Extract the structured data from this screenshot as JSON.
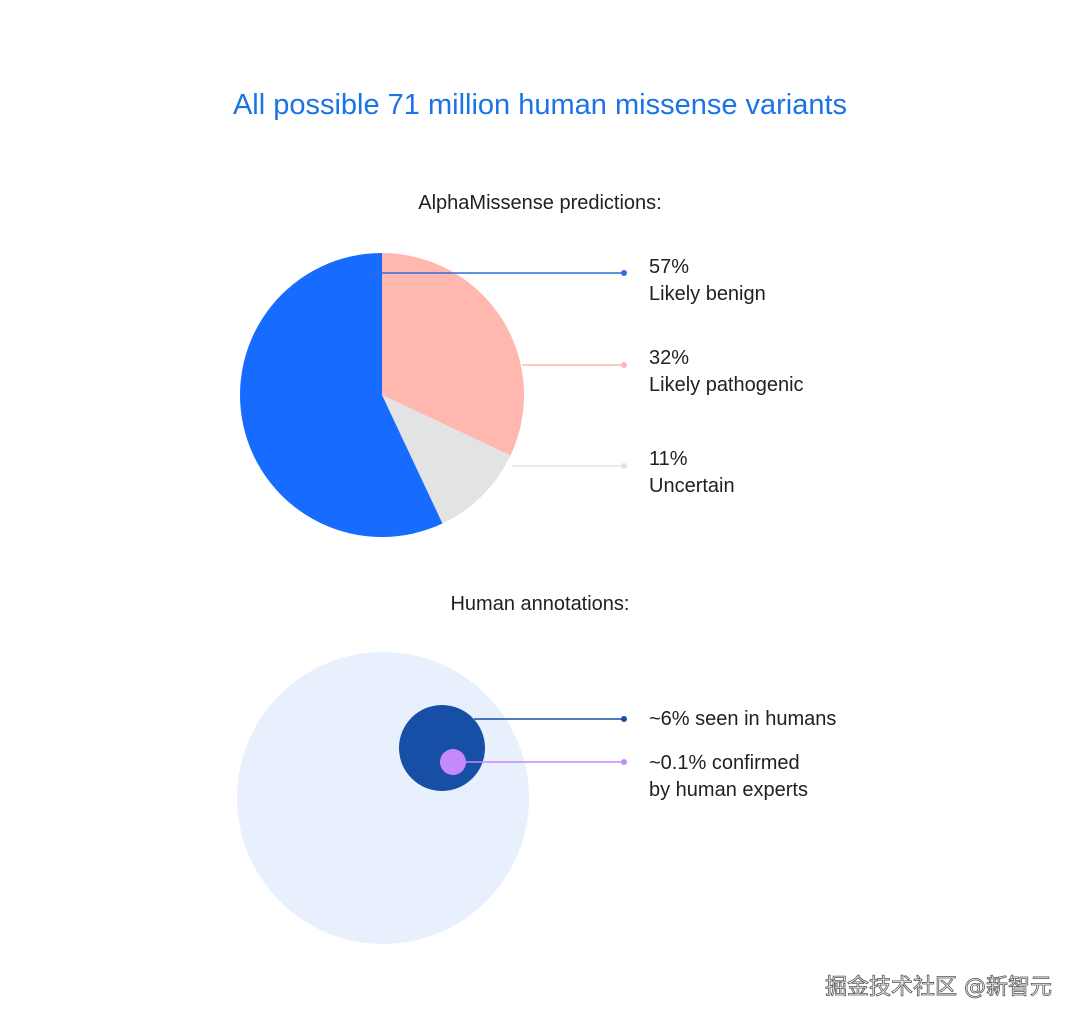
{
  "title": "All possible 71 million human missense variants",
  "watermark": "掘金技术社区 @新智元",
  "colors": {
    "title": "#1a73e8",
    "text": "#202124",
    "benign": "#176bff",
    "pathogenic": "#ffb7b0",
    "uncertain": "#e3e3e3",
    "all_variants": "#e8f0fd",
    "seen_in_humans": "#174ea6",
    "confirmed": "#c58af9"
  },
  "chart_data": [
    {
      "type": "pie",
      "title": "AlphaMissense predictions:",
      "slices": [
        {
          "label": "Likely benign",
          "value": 57,
          "value_label": "57%",
          "color": "#176bff"
        },
        {
          "label": "Likely pathogenic",
          "value": 32,
          "value_label": "32%",
          "color": "#ffb7b0"
        },
        {
          "label": "Uncertain",
          "value": 11,
          "value_label": "11%",
          "color": "#e3e3e3"
        }
      ],
      "legend": "right"
    },
    {
      "type": "nested-circles",
      "title": "Human annotations:",
      "items": [
        {
          "label": "~6% seen in humans",
          "value": 6,
          "color": "#174ea6"
        },
        {
          "label": "~0.1% confirmed",
          "label_line2": "by human experts",
          "value": 0.1,
          "color": "#c58af9"
        }
      ]
    }
  ]
}
